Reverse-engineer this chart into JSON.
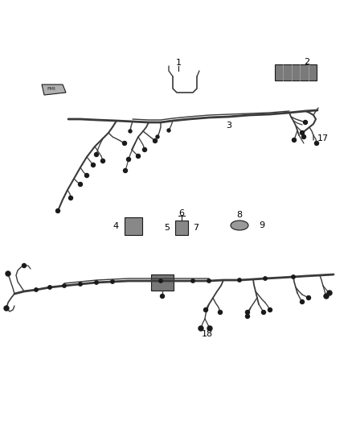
{
  "bg_color": "#ffffff",
  "wire_color": "#3a3a3a",
  "dark_color": "#1a1a1a",
  "label_color": "#000000",
  "fig_width": 4.38,
  "fig_height": 5.33,
  "dpi": 100
}
